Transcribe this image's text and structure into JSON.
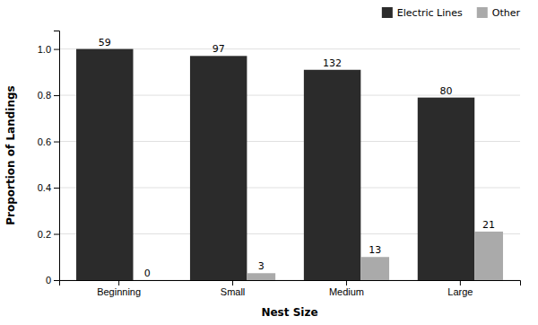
{
  "chart_data": {
    "type": "bar",
    "categories": [
      "Beginning",
      "Small",
      "Medium",
      "Large"
    ],
    "series": [
      {
        "name": "Electric Lines",
        "color": "#2b2b2b",
        "values": [
          1.0,
          0.97,
          0.91,
          0.79
        ],
        "counts": [
          59,
          97,
          132,
          80
        ]
      },
      {
        "name": "Other",
        "color": "#aaaaaa",
        "values": [
          0.0,
          0.03,
          0.1,
          0.21
        ],
        "counts": [
          0,
          3,
          13,
          21
        ]
      }
    ],
    "xlabel": "Nest Size",
    "ylabel": "Proportion of Landings",
    "ylim": [
      0,
      1.08
    ],
    "yticks": [
      0,
      0.2,
      0.4,
      0.6,
      0.8,
      {
        "value": 1.0,
        "label": "1.0"
      }
    ],
    "grid": true,
    "legend": "upper right"
  }
}
